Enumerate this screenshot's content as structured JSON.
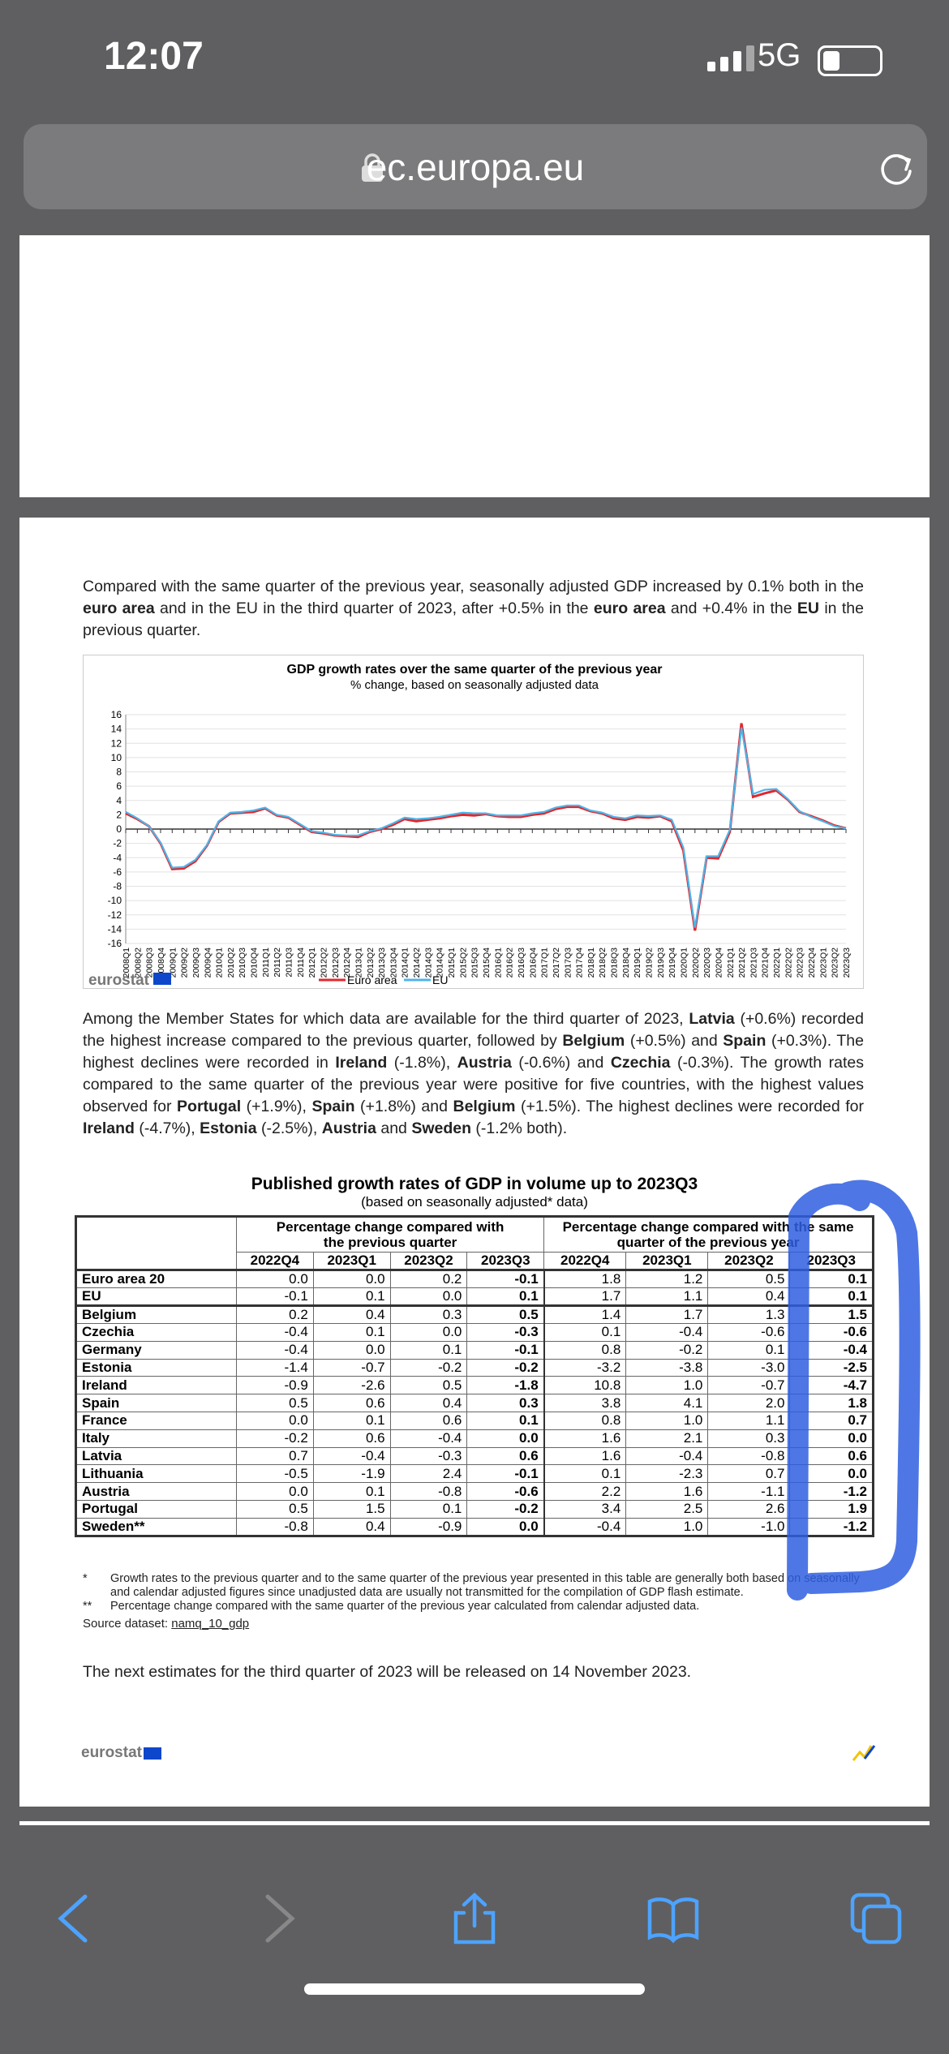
{
  "status": {
    "time": "12:07",
    "network": "5G"
  },
  "browser": {
    "url": "ec.europa.eu"
  },
  "paragraph1": {
    "pre": "Compared with the same quarter of the previous year, seasonally adjusted GDP increased by 0.1% both in the ",
    "b1": "euro area",
    "mid1": " and in the EU in the third quarter of 2023, after +0.5% in the ",
    "b2": "euro area",
    "mid2": " and +0.4% in the ",
    "b3": "EU",
    "post": " in the previous quarter."
  },
  "chart_data": {
    "type": "line",
    "title": "GDP growth rates over the same quarter of the previous year",
    "subtitle": "% change, based on seasonally adjusted data",
    "ylim": [
      -16,
      16
    ],
    "yticks": [
      16,
      14,
      12,
      10,
      8,
      6,
      4,
      2,
      0,
      -2,
      -4,
      -6,
      -8,
      -10,
      -12,
      -14,
      -16
    ],
    "grid": true,
    "legend_placement": "bottom",
    "x": [
      "2008Q1",
      "2008Q2",
      "2008Q3",
      "2008Q4",
      "2009Q1",
      "2009Q2",
      "2009Q3",
      "2009Q4",
      "2010Q1",
      "2010Q2",
      "2010Q3",
      "2010Q4",
      "2011Q1",
      "2011Q2",
      "2011Q3",
      "2011Q4",
      "2012Q1",
      "2012Q2",
      "2012Q3",
      "2012Q4",
      "2013Q1",
      "2013Q2",
      "2013Q3",
      "2013Q4",
      "2014Q1",
      "2014Q2",
      "2014Q3",
      "2014Q4",
      "2015Q1",
      "2015Q2",
      "2015Q3",
      "2015Q4",
      "2016Q1",
      "2016Q2",
      "2016Q3",
      "2016Q4",
      "2017Q1",
      "2017Q2",
      "2017Q3",
      "2017Q4",
      "2018Q1",
      "2018Q2",
      "2018Q3",
      "2018Q4",
      "2019Q1",
      "2019Q2",
      "2019Q3",
      "2019Q4",
      "2020Q1",
      "2020Q2",
      "2020Q3",
      "2020Q4",
      "2021Q1",
      "2021Q2",
      "2021Q3",
      "2021Q4",
      "2022Q1",
      "2022Q2",
      "2022Q3",
      "2022Q4",
      "2023Q1",
      "2023Q2",
      "2023Q3"
    ],
    "series": [
      {
        "name": "Euro area",
        "color": "#e3262b",
        "values": [
          2.2,
          1.4,
          0.4,
          -2.0,
          -5.6,
          -5.5,
          -4.5,
          -2.3,
          1.0,
          2.2,
          2.3,
          2.4,
          2.9,
          1.9,
          1.6,
          0.6,
          -0.4,
          -0.6,
          -0.9,
          -1.0,
          -1.1,
          -0.4,
          0.0,
          0.6,
          1.4,
          1.1,
          1.3,
          1.5,
          1.8,
          2.0,
          1.9,
          2.1,
          1.8,
          1.7,
          1.7,
          2.0,
          2.2,
          2.8,
          3.1,
          3.1,
          2.5,
          2.2,
          1.5,
          1.3,
          1.7,
          1.6,
          1.8,
          1.1,
          -3.0,
          -14.2,
          -4.0,
          -4.1,
          -0.4,
          14.8,
          4.5,
          5.0,
          5.4,
          4.1,
          2.4,
          1.8,
          1.2,
          0.5,
          0.1
        ]
      },
      {
        "name": "EU",
        "color": "#4fb3e8",
        "values": [
          2.4,
          1.5,
          0.4,
          -1.9,
          -5.4,
          -5.3,
          -4.3,
          -2.2,
          1.1,
          2.3,
          2.4,
          2.6,
          3.0,
          2.0,
          1.7,
          0.7,
          -0.3,
          -0.5,
          -0.8,
          -0.9,
          -0.9,
          -0.3,
          0.1,
          0.8,
          1.6,
          1.4,
          1.5,
          1.7,
          2.0,
          2.3,
          2.2,
          2.2,
          1.9,
          1.9,
          1.9,
          2.2,
          2.4,
          3.0,
          3.3,
          3.3,
          2.6,
          2.3,
          1.7,
          1.5,
          1.9,
          1.8,
          1.9,
          1.3,
          -2.6,
          -13.8,
          -3.8,
          -3.8,
          -0.1,
          14.2,
          4.9,
          5.5,
          5.6,
          4.2,
          2.5,
          1.7,
          1.1,
          0.4,
          0.1
        ]
      }
    ]
  },
  "chart_brand": "eurostat",
  "paragraph2": {
    "t1": "Among the Member States for which data are available for the third quarter of 2023, ",
    "b1": "Latvia",
    "t2": " (+0.6%) recorded the highest increase compared to the previous quarter, followed by ",
    "b2": "Belgium",
    "t3": " (+0.5%) and ",
    "b3": "Spain",
    "t4": " (+0.3%). The highest declines were recorded in ",
    "b4": "Ireland",
    "t5": " (-1.8%), ",
    "b5": "Austria",
    "t6": " (-0.6%) and ",
    "b6": "Czechia",
    "t7": " (-0.3%). The growth rates compared to the same quarter of the previous year were positive for five countries, with the highest values observed for ",
    "b7": "Portugal",
    "t8": " (+1.9%), ",
    "b8": "Spain",
    "t9": " (+1.8%) and ",
    "b9": "Belgium",
    "t10": " (+1.5%). The highest declines were recorded for ",
    "b10": "Ireland",
    "t11": " (-4.7%), ",
    "b11": "Estonia",
    "t12": " (-2.5%), ",
    "b12": "Austria",
    "t13": " and ",
    "b13": "Sweden",
    "t14": " (-1.2% both)."
  },
  "table": {
    "title": "Published growth rates of GDP in volume up to 2023Q3",
    "subtitle": "(based on seasonally adjusted* data)",
    "group1": "Percentage change compared with the previous quarter",
    "group2": "Percentage change compared with the same quarter of the previous year",
    "columns": [
      "2022Q4",
      "2023Q1",
      "2023Q2",
      "2023Q3",
      "2022Q4",
      "2023Q1",
      "2023Q2",
      "2023Q3"
    ],
    "rows": [
      {
        "label": "Euro area 20",
        "v": [
          "0.0",
          "0.0",
          "0.2",
          "-0.1",
          "1.8",
          "1.2",
          "0.5",
          "0.1"
        ]
      },
      {
        "label": "EU",
        "v": [
          "-0.1",
          "0.1",
          "0.0",
          "0.1",
          "1.7",
          "1.1",
          "0.4",
          "0.1"
        ]
      },
      {
        "label": "Belgium",
        "v": [
          "0.2",
          "0.4",
          "0.3",
          "0.5",
          "1.4",
          "1.7",
          "1.3",
          "1.5"
        ]
      },
      {
        "label": "Czechia",
        "v": [
          "-0.4",
          "0.1",
          "0.0",
          "-0.3",
          "0.1",
          "-0.4",
          "-0.6",
          "-0.6"
        ]
      },
      {
        "label": "Germany",
        "v": [
          "-0.4",
          "0.0",
          "0.1",
          "-0.1",
          "0.8",
          "-0.2",
          "0.1",
          "-0.4"
        ]
      },
      {
        "label": "Estonia",
        "v": [
          "-1.4",
          "-0.7",
          "-0.2",
          "-0.2",
          "-3.2",
          "-3.8",
          "-3.0",
          "-2.5"
        ]
      },
      {
        "label": "Ireland",
        "v": [
          "-0.9",
          "-2.6",
          "0.5",
          "-1.8",
          "10.8",
          "1.0",
          "-0.7",
          "-4.7"
        ]
      },
      {
        "label": "Spain",
        "v": [
          "0.5",
          "0.6",
          "0.4",
          "0.3",
          "3.8",
          "4.1",
          "2.0",
          "1.8"
        ]
      },
      {
        "label": "France",
        "v": [
          "0.0",
          "0.1",
          "0.6",
          "0.1",
          "0.8",
          "1.0",
          "1.1",
          "0.7"
        ]
      },
      {
        "label": "Italy",
        "v": [
          "-0.2",
          "0.6",
          "-0.4",
          "0.0",
          "1.6",
          "2.1",
          "0.3",
          "0.0"
        ]
      },
      {
        "label": "Latvia",
        "v": [
          "0.7",
          "-0.4",
          "-0.3",
          "0.6",
          "1.6",
          "-0.4",
          "-0.8",
          "0.6"
        ]
      },
      {
        "label": "Lithuania",
        "v": [
          "-0.5",
          "-1.9",
          "2.4",
          "-0.1",
          "0.1",
          "-2.3",
          "0.7",
          "0.0"
        ]
      },
      {
        "label": "Austria",
        "v": [
          "0.0",
          "0.1",
          "-0.8",
          "-0.6",
          "2.2",
          "1.6",
          "-1.1",
          "-1.2"
        ]
      },
      {
        "label": "Portugal",
        "v": [
          "0.5",
          "1.5",
          "0.1",
          "-0.2",
          "3.4",
          "2.5",
          "2.6",
          "1.9"
        ]
      },
      {
        "label": "Sweden**",
        "v": [
          "-0.8",
          "0.4",
          "-0.9",
          "0.0",
          "-0.4",
          "1.0",
          "-1.0",
          "-1.2"
        ]
      }
    ],
    "footnote1_mark": "*",
    "footnote1": "Growth rates to the previous quarter and to the same quarter of the previous year presented in this table are generally both based on seasonally and calendar adjusted figures since unadjusted data are usually not transmitted for the compilation of GDP flash estimate.",
    "footnote2_mark": "**",
    "footnote2": "Percentage change compared with the same quarter of the previous year calculated from calendar adjusted data.",
    "source_label": "Source dataset: ",
    "source_link": "namq_10_gdp"
  },
  "next_release": "The next estimates for the third quarter of 2023 will be released on 14 November 2023.",
  "footer_brand": "eurostat",
  "colors": {
    "annotation": "#2f5fe0",
    "brand_blue": "#0e47cb"
  }
}
